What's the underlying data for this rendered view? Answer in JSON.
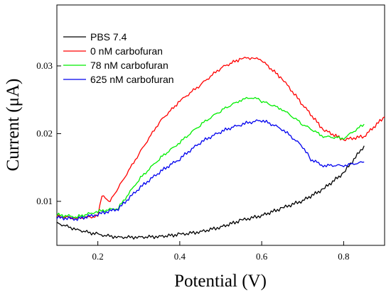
{
  "chart_data": {
    "type": "line",
    "xlabel": "Potential (V)",
    "ylabel": "Current (μA)",
    "xlim": [
      0.1,
      0.9
    ],
    "ylim": [
      0.0035,
      0.039
    ],
    "xticks": [
      "0.2",
      "0.4",
      "0.6",
      "0.8"
    ],
    "xtick_values": [
      0.2,
      0.4,
      0.6,
      0.8
    ],
    "yticks": [
      "0.01",
      "0.02",
      "0.03"
    ],
    "ytick_values": [
      0.01,
      0.02,
      0.03
    ],
    "grid": false,
    "legend_position": "top-left",
    "series": [
      {
        "name": "PBS 7.4",
        "color": "#000000",
        "x": [
          0.1,
          0.15,
          0.2,
          0.25,
          0.3,
          0.35,
          0.4,
          0.45,
          0.5,
          0.55,
          0.6,
          0.65,
          0.7,
          0.75,
          0.8,
          0.85
        ],
        "y": [
          0.0068,
          0.0058,
          0.0051,
          0.0047,
          0.0047,
          0.0048,
          0.0051,
          0.0055,
          0.0062,
          0.0072,
          0.0079,
          0.009,
          0.0101,
          0.0118,
          0.0142,
          0.0182
        ]
      },
      {
        "name": "0 nM carbofuran",
        "color": "#ff0000",
        "x": [
          0.1,
          0.15,
          0.2,
          0.21,
          0.23,
          0.25,
          0.3,
          0.35,
          0.4,
          0.45,
          0.5,
          0.55,
          0.58,
          0.6,
          0.65,
          0.7,
          0.75,
          0.8,
          0.85,
          0.9
        ],
        "y": [
          0.0078,
          0.0075,
          0.0078,
          0.0108,
          0.01,
          0.012,
          0.017,
          0.0217,
          0.0248,
          0.0272,
          0.0297,
          0.0311,
          0.0312,
          0.0308,
          0.0281,
          0.0243,
          0.0206,
          0.0191,
          0.0196,
          0.0225
        ]
      },
      {
        "name": "78 nM carbofuran",
        "color": "#00ee00",
        "x": [
          0.1,
          0.15,
          0.2,
          0.25,
          0.3,
          0.35,
          0.4,
          0.45,
          0.5,
          0.55,
          0.58,
          0.6,
          0.65,
          0.7,
          0.75,
          0.8,
          0.85
        ],
        "y": [
          0.008,
          0.0077,
          0.0085,
          0.009,
          0.0132,
          0.0163,
          0.0187,
          0.0213,
          0.0234,
          0.025,
          0.0254,
          0.0248,
          0.0236,
          0.0214,
          0.0196,
          0.0193,
          0.0214
        ]
      },
      {
        "name": "625 nM carbofuran",
        "color": "#0000ee",
        "x": [
          0.1,
          0.15,
          0.2,
          0.25,
          0.3,
          0.35,
          0.4,
          0.45,
          0.5,
          0.55,
          0.6,
          0.65,
          0.7,
          0.72,
          0.75,
          0.8,
          0.85
        ],
        "y": [
          0.0076,
          0.0074,
          0.0081,
          0.0089,
          0.0119,
          0.0143,
          0.0163,
          0.0187,
          0.0203,
          0.0214,
          0.022,
          0.0207,
          0.0181,
          0.0162,
          0.0153,
          0.0153,
          0.0158
        ]
      }
    ]
  }
}
